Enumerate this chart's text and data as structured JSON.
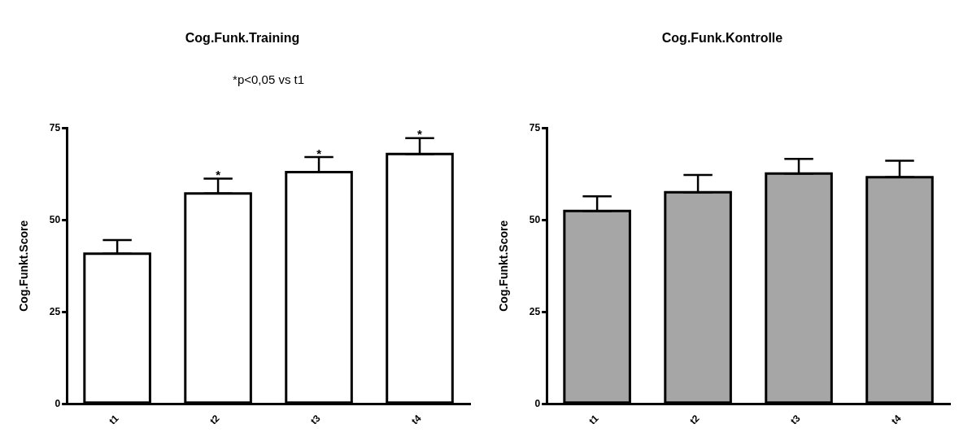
{
  "chart_data": [
    {
      "type": "bar",
      "title": "Cog.Funk.Training",
      "ylabel": "Cog.Funkt.Score",
      "categories": [
        "t1",
        "t2",
        "t3",
        "t4"
      ],
      "color": "#ffffff",
      "values": [
        40.8,
        57.2,
        63.0,
        67.9
      ],
      "errors": [
        [
          40.8,
          44.5
        ],
        [
          57.2,
          61.2
        ],
        [
          63.0,
          67.1
        ],
        [
          67.9,
          72.2
        ]
      ],
      "ylim": [
        0,
        75
      ],
      "yticks": [
        0,
        25,
        50,
        75
      ],
      "grid": false,
      "legend": false,
      "annotations": [
        "*p<0,05 vs t1",
        {
          "text": "*",
          "x": "t2",
          "y": 61.2
        },
        {
          "text": "*",
          "x": "t3",
          "y": 67.1
        },
        {
          "text": "*",
          "x": "t4",
          "y": 72.2
        }
      ]
    },
    {
      "type": "bar",
      "title": "Cog.Funk.Kontrolle",
      "ylabel": "Cog.Funkt.Score",
      "categories": [
        "t1",
        "t2",
        "t3",
        "t4"
      ],
      "color": "#a6a6a6",
      "values": [
        52.4,
        57.5,
        62.6,
        61.6
      ],
      "errors": [
        [
          52.4,
          56.4
        ],
        [
          57.5,
          62.2
        ],
        [
          62.6,
          66.6
        ],
        [
          61.6,
          66.1
        ]
      ],
      "ylim": [
        0,
        75
      ],
      "yticks": [
        0,
        25,
        50,
        75
      ],
      "grid": false,
      "legend": false
    }
  ]
}
